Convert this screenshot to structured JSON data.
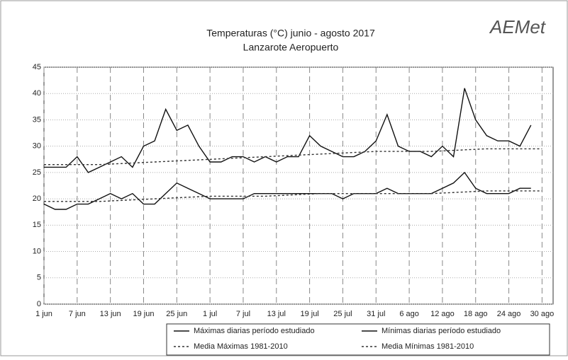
{
  "chart_data": {
    "type": "line",
    "title": "Temperaturas (°C) junio - agosto 2017",
    "subtitle": "Lanzarote Aeropuerto",
    "logo": "AEMet",
    "xlim": [
      0,
      92
    ],
    "ylim": [
      0,
      45
    ],
    "yticks": [
      0,
      5,
      10,
      15,
      20,
      25,
      30,
      35,
      40,
      45
    ],
    "xticks": [
      {
        "value": 0,
        "label": "1 jun"
      },
      {
        "value": 6,
        "label": "7 jun"
      },
      {
        "value": 12,
        "label": "13 jun"
      },
      {
        "value": 18,
        "label": "19 jun"
      },
      {
        "value": 24,
        "label": "25 jun"
      },
      {
        "value": 30,
        "label": "1 jul"
      },
      {
        "value": 36,
        "label": "7 jul"
      },
      {
        "value": 42,
        "label": "13 jul"
      },
      {
        "value": 48,
        "label": "19 jul"
      },
      {
        "value": 54,
        "label": "25 jul"
      },
      {
        "value": 60,
        "label": "31 jul"
      },
      {
        "value": 66,
        "label": "6 ago"
      },
      {
        "value": 72,
        "label": "12 ago"
      },
      {
        "value": 78,
        "label": "18 ago"
      },
      {
        "value": 84,
        "label": "24 ago"
      },
      {
        "value": 90,
        "label": "30 ago"
      }
    ],
    "grid": true,
    "series": [
      {
        "name": "Máximas diarias período estudiado",
        "color": "#111111",
        "dash": "none",
        "x": [
          0,
          2,
          4,
          6,
          8,
          10,
          12,
          14,
          16,
          18,
          20,
          22,
          24,
          26,
          28,
          30,
          32,
          34,
          36,
          38,
          40,
          42,
          44,
          46,
          48,
          50,
          52,
          54,
          56,
          58,
          60,
          62,
          64,
          66,
          68,
          70,
          72,
          74,
          76,
          78,
          80,
          82,
          84,
          86,
          88
        ],
        "values": [
          26,
          26,
          26,
          28,
          25,
          26,
          27,
          28,
          26,
          30,
          31,
          37,
          33,
          34,
          30,
          27,
          27,
          28,
          28,
          27,
          28,
          27,
          28,
          28,
          32,
          30,
          29,
          28,
          28,
          29,
          31,
          36,
          30,
          29,
          29,
          28,
          30,
          28,
          41,
          35,
          32,
          31,
          31,
          30,
          34
        ]
      },
      {
        "name": "Mínimas diarias período estudiado",
        "color": "#111111",
        "dash": "none",
        "x": [
          0,
          2,
          4,
          6,
          8,
          10,
          12,
          14,
          16,
          18,
          20,
          22,
          24,
          26,
          28,
          30,
          32,
          34,
          36,
          38,
          40,
          42,
          44,
          46,
          48,
          50,
          52,
          54,
          56,
          58,
          60,
          62,
          64,
          66,
          68,
          70,
          72,
          74,
          76,
          78,
          80,
          82,
          84,
          86,
          88
        ],
        "values": [
          19,
          18,
          18,
          19,
          19,
          20,
          21,
          20,
          21,
          19,
          19,
          21,
          23,
          22,
          21,
          20,
          20,
          20,
          20,
          21,
          21,
          21,
          21,
          21,
          21,
          21,
          21,
          20,
          21,
          21,
          21,
          22,
          21,
          21,
          21,
          21,
          22,
          23,
          25,
          22,
          21,
          21,
          21,
          22,
          22
        ]
      },
      {
        "name": "Media Máximas 1981-2010",
        "color": "#333333",
        "dash": "3 3",
        "x": [
          0,
          10,
          20,
          30,
          40,
          50,
          60,
          70,
          80,
          90
        ],
        "values": [
          26.5,
          26.5,
          27,
          27.5,
          28,
          28.5,
          29,
          29,
          29.5,
          29.5
        ]
      },
      {
        "name": "Media Mínimas 1981-2010",
        "color": "#333333",
        "dash": "3 3",
        "x": [
          0,
          10,
          20,
          30,
          40,
          50,
          60,
          70,
          80,
          90
        ],
        "values": [
          19.5,
          19.5,
          20,
          20.5,
          20.5,
          21,
          21,
          21,
          21.5,
          21.5
        ]
      }
    ]
  }
}
